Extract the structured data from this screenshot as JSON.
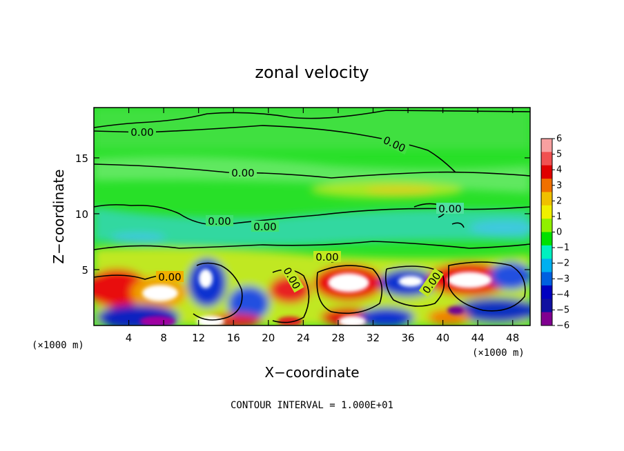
{
  "chart_data": {
    "type": "heatmap",
    "title": "zonal velocity",
    "xlabel": "X−coordinate",
    "ylabel": "Z−coordinate",
    "x_unit_left": "(×1000 m)",
    "x_unit_right": "(×1000 m)",
    "footer": "CONTOUR INTERVAL = 1.000E+01",
    "xlim": [
      0,
      50
    ],
    "ylim": [
      0,
      19.5
    ],
    "xticks": [
      4,
      8,
      12,
      16,
      20,
      24,
      28,
      32,
      36,
      40,
      44,
      48
    ],
    "yticks": [
      5,
      10,
      15
    ],
    "colorbar": {
      "ticks": [
        6,
        5,
        4,
        3,
        2,
        1,
        0,
        -1,
        -2,
        -3,
        -4,
        -5,
        -6
      ],
      "tick_labels": [
        "6",
        "5",
        "4",
        "3",
        "2",
        "1",
        "0",
        "−1",
        "−2",
        "−3",
        "−4",
        "−5",
        "−6"
      ],
      "colors": [
        "#f8a0a0",
        "#f05050",
        "#e00000",
        "#f07000",
        "#f0c000",
        "#f0f000",
        "#90f000",
        "#00e000",
        "#00f0c0",
        "#00b0f0",
        "#0060e0",
        "#0000c0",
        "#1010a0",
        "#800090"
      ]
    },
    "contour_label": "0.00",
    "field_note": "zero contour of zonal velocity; strong positive/negative cells below z=5"
  }
}
